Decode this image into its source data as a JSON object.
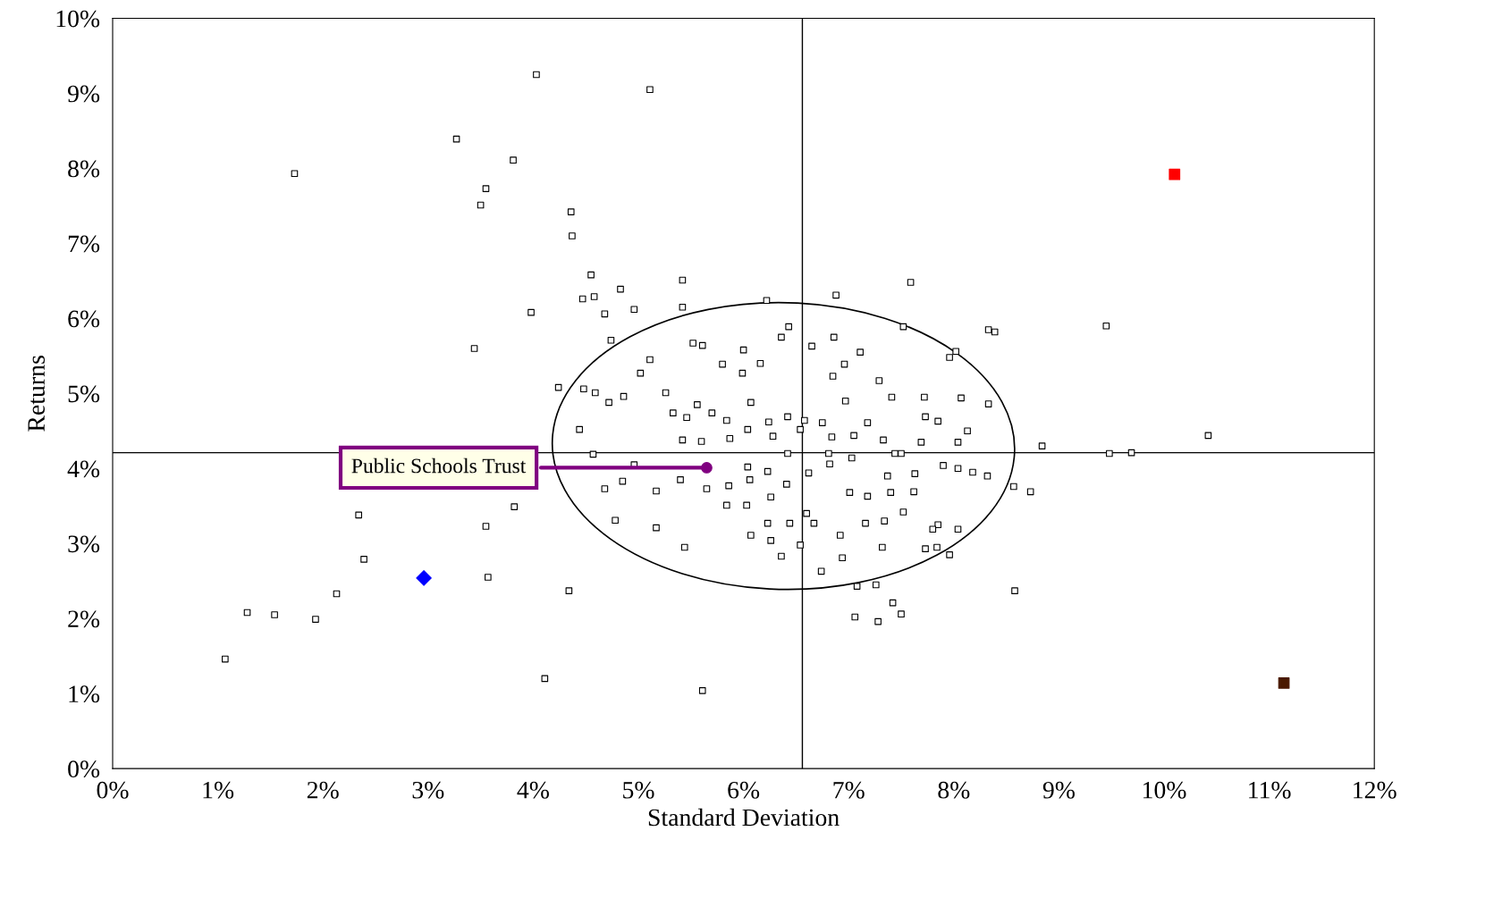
{
  "chart_data": {
    "type": "scatter",
    "xlabel": "Standard Deviation",
    "ylabel": "Returns",
    "xlim": [
      0,
      12
    ],
    "ylim": [
      0,
      10
    ],
    "xticks": [
      {
        "value": 0,
        "label": "0%"
      },
      {
        "value": 1,
        "label": "1%"
      },
      {
        "value": 2,
        "label": "2%"
      },
      {
        "value": 3,
        "label": "3%"
      },
      {
        "value": 4,
        "label": "4%"
      },
      {
        "value": 5,
        "label": "5%"
      },
      {
        "value": 6,
        "label": "6%"
      },
      {
        "value": 7,
        "label": "7%"
      },
      {
        "value": 8,
        "label": "8%"
      },
      {
        "value": 9,
        "label": "9%"
      },
      {
        "value": 10,
        "label": "10%"
      },
      {
        "value": 11,
        "label": "11%"
      },
      {
        "value": 12,
        "label": "12%"
      }
    ],
    "yticks": [
      {
        "value": 0,
        "label": "0%"
      },
      {
        "value": 1,
        "label": "1%"
      },
      {
        "value": 2,
        "label": "2%"
      },
      {
        "value": 3,
        "label": "3%"
      },
      {
        "value": 4,
        "label": "4%"
      },
      {
        "value": 5,
        "label": "5%"
      },
      {
        "value": 6,
        "label": "6%"
      },
      {
        "value": 7,
        "label": "7%"
      },
      {
        "value": 8,
        "label": "8%"
      },
      {
        "value": 9,
        "label": "9%"
      },
      {
        "value": 10,
        "label": "10%"
      }
    ],
    "grid": false,
    "legend": false,
    "ref_lines": [
      {
        "axis": "x",
        "value": 6.56,
        "color": "#000000"
      },
      {
        "axis": "y",
        "value": 4.21,
        "color": "#000000"
      }
    ],
    "series": [
      {
        "color": "#000000",
        "marker": "square",
        "x": [
          4.03,
          5.11,
          3.27,
          3.81,
          1.73,
          3.55,
          3.5,
          4.36,
          4.37,
          4.55,
          5.42,
          4.83,
          6.88,
          7.59,
          6.22,
          4.47,
          4.58,
          4.96,
          3.98,
          4.68,
          5.42,
          3.44,
          9.45,
          8.33,
          8.39,
          7.52,
          4.74,
          8.02,
          7.96,
          10.42,
          8.84,
          9.48,
          9.69,
          8.57,
          8.73,
          8.58,
          4.44,
          4.57,
          4.24,
          4.48,
          4.59,
          4.72,
          4.86,
          5.02,
          5.11,
          4.96,
          4.85,
          4.68,
          4.78,
          5.17,
          5.17,
          5.44,
          2.34,
          2.39,
          2.13,
          1.28,
          1.54,
          1.93,
          1.07,
          3.55,
          3.57,
          3.82,
          4.34,
          4.11,
          5.61,
          7.06,
          7.28,
          7.5,
          7.42,
          7.08,
          7.26,
          6.74,
          6.36,
          7.96,
          7.84,
          7.73,
          7.85,
          7.8,
          8.04,
          8.32,
          8.18,
          8.04,
          7.9,
          7.72,
          8.07,
          8.13,
          8.04,
          7.69,
          7.85,
          7.73,
          8.33,
          5.26,
          5.52,
          5.61,
          5.8,
          5.99,
          6.0,
          6.16,
          6.36,
          6.43,
          6.65,
          6.86,
          6.96,
          7.11,
          7.29,
          7.41,
          6.85,
          5.33,
          5.46,
          5.56,
          5.7,
          5.84,
          6.07,
          6.24,
          6.42,
          6.58,
          6.75,
          6.97,
          7.18,
          7.33,
          7.5,
          5.42,
          5.6,
          5.87,
          6.04,
          6.28,
          6.54,
          6.84,
          7.05,
          5.4,
          5.65,
          5.86,
          6.06,
          6.26,
          6.41,
          6.62,
          6.82,
          7.01,
          7.18,
          7.4,
          7.62,
          7.63,
          7.37,
          5.84,
          6.03,
          6.23,
          6.44,
          6.67,
          6.92,
          7.16,
          7.34,
          7.52,
          6.07,
          6.26,
          6.54,
          6.94,
          7.32,
          6.6,
          6.81,
          7.03,
          6.42,
          7.44,
          6.04,
          6.23
        ],
        "values": [
          9.25,
          9.05,
          8.39,
          8.11,
          7.93,
          7.73,
          7.51,
          7.42,
          7.1,
          6.58,
          6.51,
          6.39,
          6.31,
          6.48,
          6.24,
          6.26,
          6.29,
          6.12,
          6.08,
          6.06,
          6.15,
          5.6,
          5.9,
          5.85,
          5.82,
          5.89,
          5.71,
          5.56,
          5.48,
          4.44,
          4.3,
          4.2,
          4.21,
          3.76,
          3.69,
          2.37,
          4.52,
          4.19,
          5.08,
          5.06,
          5.01,
          4.88,
          4.96,
          5.27,
          5.45,
          4.05,
          3.83,
          3.73,
          3.31,
          3.7,
          3.21,
          2.95,
          3.38,
          2.79,
          2.33,
          2.08,
          2.05,
          1.99,
          1.46,
          3.23,
          2.55,
          3.49,
          2.37,
          1.2,
          1.04,
          2.02,
          1.96,
          2.06,
          2.21,
          2.43,
          2.45,
          2.63,
          2.83,
          2.85,
          2.95,
          2.93,
          3.25,
          3.19,
          3.19,
          3.9,
          3.95,
          4.0,
          4.04,
          4.95,
          4.94,
          4.5,
          4.35,
          4.35,
          4.63,
          4.69,
          4.86,
          5.01,
          5.67,
          5.64,
          5.39,
          5.27,
          5.58,
          5.4,
          5.75,
          5.89,
          5.63,
          5.75,
          5.39,
          5.55,
          5.17,
          4.95,
          5.23,
          4.74,
          4.68,
          4.85,
          4.74,
          4.64,
          4.88,
          4.62,
          4.69,
          4.64,
          4.61,
          4.9,
          4.61,
          4.38,
          4.2,
          4.38,
          4.36,
          4.4,
          4.52,
          4.43,
          4.52,
          4.42,
          4.44,
          3.85,
          3.73,
          3.77,
          3.85,
          3.62,
          3.79,
          3.94,
          4.06,
          3.68,
          3.63,
          3.68,
          3.69,
          3.93,
          3.9,
          3.51,
          3.51,
          3.27,
          3.27,
          3.27,
          3.11,
          3.27,
          3.3,
          3.42,
          3.11,
          3.04,
          2.98,
          2.81,
          2.95,
          3.4,
          4.2,
          4.14,
          4.2,
          4.2,
          4.02,
          3.96
        ]
      },
      {
        "color": "#ff0000",
        "marker": "square",
        "x": [
          10.1
        ],
        "values": [
          7.92
        ]
      },
      {
        "color": "#4a1a00",
        "marker": "square",
        "x": [
          11.14
        ],
        "values": [
          1.14
        ]
      },
      {
        "color": "#0000ff",
        "marker": "diamond",
        "x": [
          2.96
        ],
        "values": [
          2.54
        ]
      },
      {
        "name": "Public Schools Trust",
        "color": "#800080",
        "marker": "circle",
        "x": [
          5.65
        ],
        "values": [
          4.01
        ]
      }
    ]
  }
}
